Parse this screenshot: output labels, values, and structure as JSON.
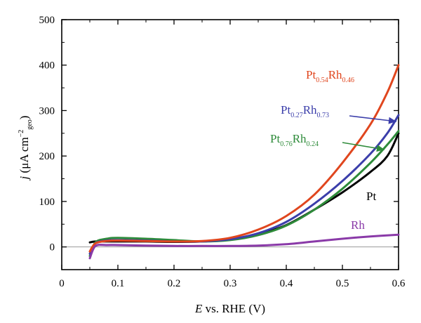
{
  "chart_data": {
    "type": "line",
    "xlabel_italic": "E",
    "xlabel_rest": " vs. RHE (V)",
    "ylabel": {
      "italic": "j",
      "text": " (μA cm",
      "sup": "−2",
      "sub": "geo",
      "close": ")"
    },
    "xlim": [
      0,
      0.6
    ],
    "ylim": [
      -50,
      500
    ],
    "xticks": [
      0,
      0.1,
      0.2,
      0.3,
      0.4,
      0.5,
      0.6
    ],
    "xtick_labels": [
      "0",
      "0.1",
      "0.2",
      "0.3",
      "0.4",
      "0.5",
      "0.6"
    ],
    "yticks": [
      0,
      100,
      200,
      300,
      400,
      500
    ],
    "ytick_labels": [
      "0",
      "100",
      "200",
      "300",
      "400",
      "500"
    ],
    "grid": false,
    "zero_line": true,
    "series": [
      {
        "name": "Pt",
        "color": "#000000",
        "x": [
          0.05,
          0.06,
          0.08,
          0.1,
          0.15,
          0.2,
          0.25,
          0.3,
          0.35,
          0.4,
          0.45,
          0.5,
          0.55,
          0.58,
          0.6
        ],
        "y": [
          10,
          12,
          12,
          12,
          12,
          11,
          12,
          17,
          28,
          48,
          82,
          120,
          165,
          200,
          250
        ]
      },
      {
        "name": "Pt0.76Rh0.24",
        "color": "#2e8b3a",
        "x": [
          0.05,
          0.06,
          0.08,
          0.1,
          0.15,
          0.2,
          0.25,
          0.3,
          0.35,
          0.4,
          0.45,
          0.5,
          0.55,
          0.58,
          0.6
        ],
        "y": [
          -20,
          10,
          18,
          20,
          18,
          15,
          12,
          15,
          26,
          47,
          82,
          128,
          185,
          225,
          255
        ]
      },
      {
        "name": "Pt0.27Rh0.73",
        "color": "#3b3eaa",
        "x": [
          0.05,
          0.06,
          0.08,
          0.1,
          0.15,
          0.2,
          0.25,
          0.3,
          0.35,
          0.4,
          0.45,
          0.5,
          0.55,
          0.58,
          0.6
        ],
        "y": [
          -15,
          8,
          14,
          15,
          14,
          12,
          12,
          17,
          30,
          55,
          95,
          145,
          205,
          250,
          290
        ]
      },
      {
        "name": "Pt0.54Rh0.46",
        "color": "#e0461e",
        "x": [
          0.05,
          0.06,
          0.08,
          0.1,
          0.15,
          0.2,
          0.25,
          0.3,
          0.35,
          0.4,
          0.45,
          0.5,
          0.55,
          0.58,
          0.6
        ],
        "y": [
          -10,
          8,
          13,
          14,
          13,
          12,
          13,
          20,
          38,
          68,
          115,
          185,
          270,
          340,
          400
        ]
      },
      {
        "name": "Rh",
        "color": "#8a3aa8",
        "x": [
          0.05,
          0.06,
          0.08,
          0.1,
          0.15,
          0.2,
          0.25,
          0.3,
          0.35,
          0.4,
          0.45,
          0.5,
          0.55,
          0.6
        ],
        "y": [
          -25,
          2,
          4,
          4,
          3,
          2,
          2,
          2,
          3,
          6,
          12,
          18,
          23,
          27
        ]
      }
    ],
    "annotations": [
      {
        "base": "Pt",
        "sub1": "0.54",
        "mid": "Rh",
        "sub2": "0.46",
        "color": "#e0461e"
      },
      {
        "base": "Pt",
        "sub1": "0.27",
        "mid": "Rh",
        "sub2": "0.73",
        "color": "#3b3eaa"
      },
      {
        "base": "Pt",
        "sub1": "0.76",
        "mid": "Rh",
        "sub2": "0.24",
        "color": "#2e8b3a"
      },
      {
        "text": "Pt",
        "color": "#000000"
      },
      {
        "text": "Rh",
        "color": "#8a3aa8"
      }
    ]
  }
}
